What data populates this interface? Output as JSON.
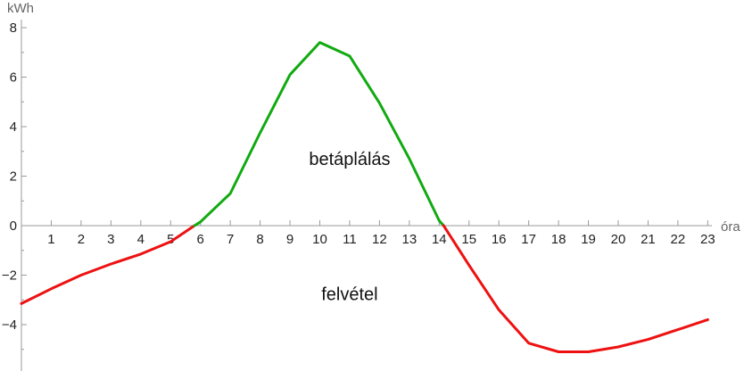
{
  "chart_data": {
    "type": "line",
    "xlabel": "óra",
    "ylabel": "kWh",
    "xlim": [
      0,
      23
    ],
    "ylim": [
      -5.7,
      8.2
    ],
    "grid": false,
    "x_ticks": [
      1,
      2,
      3,
      4,
      5,
      6,
      7,
      8,
      9,
      10,
      11,
      12,
      13,
      14,
      15,
      16,
      17,
      18,
      19,
      20,
      21,
      22,
      23
    ],
    "y_ticks": [
      -4,
      -2,
      0,
      2,
      4,
      6,
      8
    ],
    "y_tick_labels": [
      "−4",
      "−2",
      "0",
      "2",
      "4",
      "6",
      "8"
    ],
    "series": [
      {
        "color": "#ee1111",
        "points": [
          [
            0,
            -3.15
          ],
          [
            1,
            -2.55
          ],
          [
            2,
            -2.0
          ],
          [
            3,
            -1.55
          ],
          [
            4,
            -1.15
          ],
          [
            5,
            -0.65
          ],
          [
            5.8,
            0
          ]
        ]
      },
      {
        "color": "#11aa11",
        "points": [
          [
            5.8,
            0
          ],
          [
            6,
            0.15
          ],
          [
            7,
            1.3
          ],
          [
            8,
            3.75
          ],
          [
            9,
            6.1
          ],
          [
            10,
            7.4
          ],
          [
            11,
            6.85
          ],
          [
            12,
            4.95
          ],
          [
            13,
            2.7
          ],
          [
            14,
            0.2
          ],
          [
            14.15,
            0
          ]
        ]
      },
      {
        "color": "#ee1111",
        "points": [
          [
            14.15,
            0
          ],
          [
            15,
            -1.6
          ],
          [
            16,
            -3.4
          ],
          [
            17,
            -4.75
          ],
          [
            18,
            -5.1
          ],
          [
            19,
            -5.1
          ],
          [
            20,
            -4.9
          ],
          [
            21,
            -4.6
          ],
          [
            22,
            -4.2
          ],
          [
            23,
            -3.8
          ]
        ]
      }
    ],
    "annotations": [
      {
        "text": "betáplálás",
        "x": 11,
        "y": 2.45
      },
      {
        "text": "felvétel",
        "x": 11,
        "y": -3.0
      }
    ]
  }
}
